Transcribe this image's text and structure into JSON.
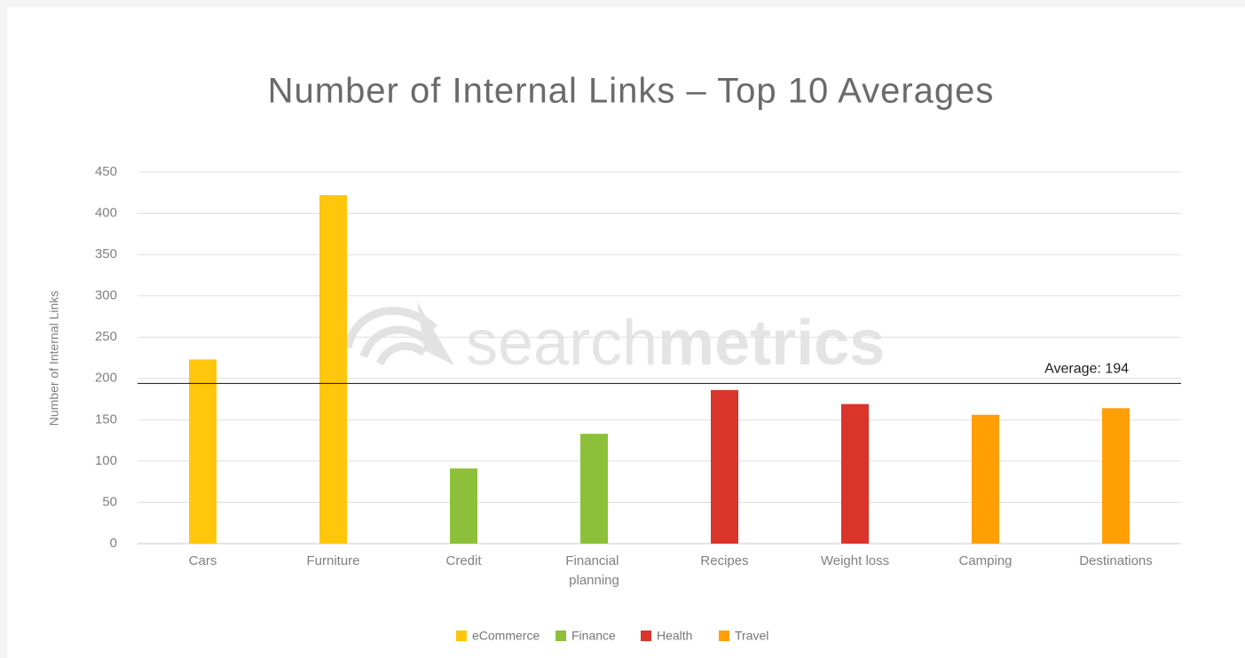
{
  "chart_data": {
    "type": "bar",
    "title": "Number of Internal Links – Top 10 Averages",
    "y_label": "Number of Internal Links",
    "categories": [
      "Cars",
      "Furniture",
      "Credit",
      "Financial planning",
      "Recipes",
      "Weight loss",
      "Camping",
      "Destinations"
    ],
    "series": [
      {
        "name": "eCommerce",
        "color": "#FFC60B",
        "values": [
          223,
          422,
          null,
          null,
          null,
          null,
          null,
          null
        ]
      },
      {
        "name": "Finance",
        "color": "#8DC03A",
        "values": [
          null,
          null,
          91,
          133,
          null,
          null,
          null,
          null
        ]
      },
      {
        "name": "Health",
        "color": "#D9352B",
        "values": [
          null,
          null,
          null,
          null,
          186,
          169,
          null,
          null
        ]
      },
      {
        "name": "Travel",
        "color": "#FF9E05",
        "values": [
          null,
          null,
          null,
          null,
          null,
          null,
          156,
          164
        ]
      }
    ],
    "reference_line": {
      "value": 194,
      "label": "Average: 194"
    },
    "ylim": [
      0,
      450
    ],
    "yticks": [
      0,
      50,
      100,
      150,
      200,
      250,
      300,
      350,
      400,
      450
    ],
    "grid": true,
    "legend": "bottom",
    "watermark": [
      "search",
      "metrics"
    ]
  }
}
